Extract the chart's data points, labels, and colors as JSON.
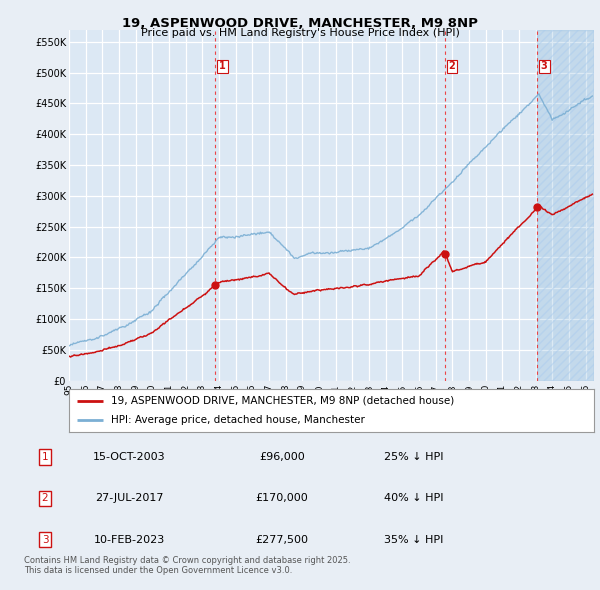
{
  "title": "19, ASPENWOOD DRIVE, MANCHESTER, M9 8NP",
  "subtitle": "Price paid vs. HM Land Registry's House Price Index (HPI)",
  "ylim": [
    0,
    570000
  ],
  "yticks": [
    0,
    50000,
    100000,
    150000,
    200000,
    250000,
    300000,
    350000,
    400000,
    450000,
    500000,
    550000
  ],
  "ytick_labels": [
    "£0",
    "£50K",
    "£100K",
    "£150K",
    "£200K",
    "£250K",
    "£300K",
    "£350K",
    "£400K",
    "£450K",
    "£500K",
    "£550K"
  ],
  "background_color": "#e8eef5",
  "plot_bg_color": "#dce8f4",
  "grid_color": "#ffffff",
  "hpi_color": "#7bafd4",
  "price_color": "#cc1111",
  "vline_color": "#ee3333",
  "xmin": 1995.0,
  "xmax": 2026.5,
  "transactions": [
    {
      "date_num": 2003.79,
      "price": 96000,
      "label": "1"
    },
    {
      "date_num": 2017.57,
      "price": 170000,
      "label": "2"
    },
    {
      "date_num": 2023.11,
      "price": 277500,
      "label": "3"
    }
  ],
  "transaction_table": [
    {
      "num": "1",
      "date": "15-OCT-2003",
      "price": "£96,000",
      "hpi_rel": "25% ↓ HPI"
    },
    {
      "num": "2",
      "date": "27-JUL-2017",
      "price": "£170,000",
      "hpi_rel": "40% ↓ HPI"
    },
    {
      "num": "3",
      "date": "10-FEB-2023",
      "price": "£277,500",
      "hpi_rel": "35% ↓ HPI"
    }
  ],
  "legend_entries": [
    {
      "label": "19, ASPENWOOD DRIVE, MANCHESTER, M9 8NP (detached house)",
      "color": "#cc1111"
    },
    {
      "label": "HPI: Average price, detached house, Manchester",
      "color": "#7bafd4"
    }
  ],
  "footer": "Contains HM Land Registry data © Crown copyright and database right 2025.\nThis data is licensed under the Open Government Licence v3.0."
}
